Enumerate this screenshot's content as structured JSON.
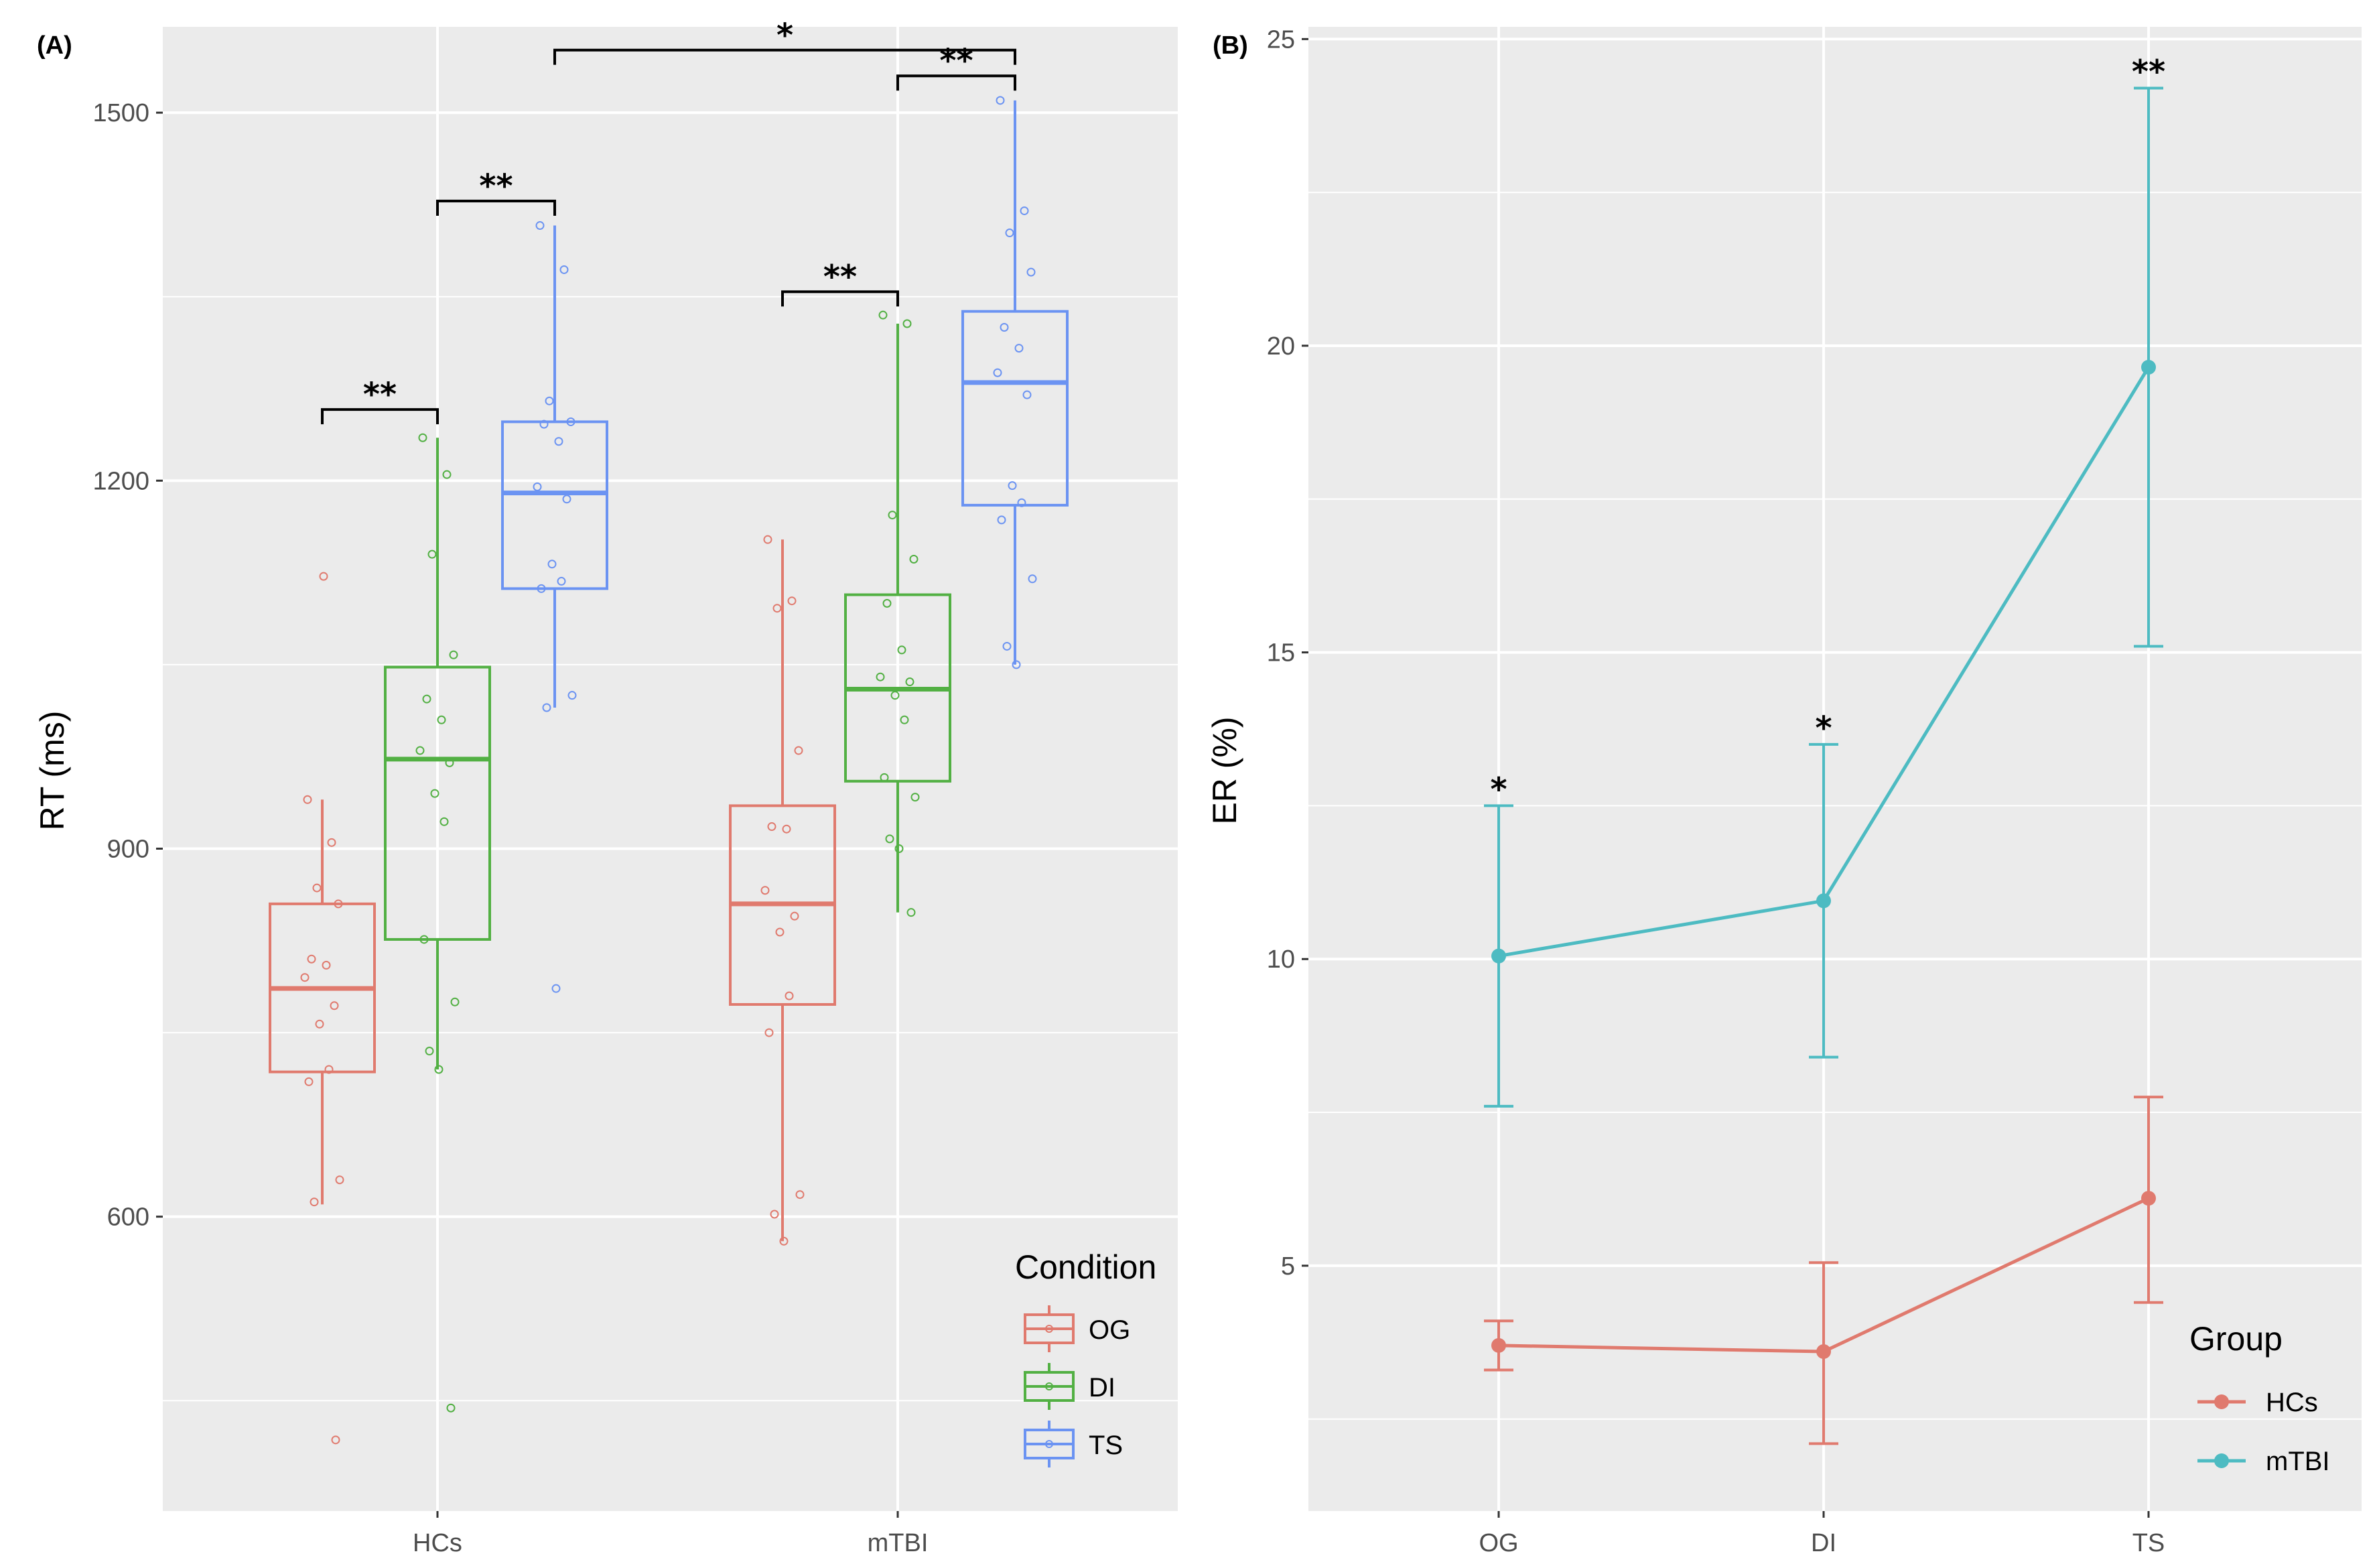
{
  "colors": {
    "OG": "#E07A6E",
    "DI": "#52B043",
    "TS": "#6B93F2",
    "HCs": "#E07A6E",
    "mTBI": "#4DBBC2",
    "panel": "#EBEBEB",
    "grid": "#FFFFFF"
  },
  "chart_data": [
    {
      "type": "box",
      "panel_label": "(A)",
      "ylabel": "RT (ms)",
      "ylim": [
        360,
        1570
      ],
      "yticks": [
        600,
        900,
        1200,
        1500
      ],
      "categories": [
        "HCs",
        "mTBI"
      ],
      "legend": {
        "title": "Condition",
        "position": "bottom-right",
        "entries": [
          "OG",
          "DI",
          "TS"
        ]
      },
      "boxes": [
        {
          "group": "HCs",
          "condition": "OG",
          "lower": 610,
          "q1": 718,
          "median": 786,
          "q3": 855,
          "upper": 940,
          "points": [
            940,
            905,
            868,
            855,
            810,
            805,
            795,
            772,
            757,
            720,
            710,
            630,
            612,
            1122,
            418
          ]
        },
        {
          "group": "HCs",
          "condition": "DI",
          "lower": 720,
          "q1": 826,
          "median": 973,
          "q3": 1048,
          "upper": 1235,
          "points": [
            1235,
            1205,
            1140,
            1058,
            1022,
            1005,
            980,
            970,
            945,
            922,
            826,
            775,
            735,
            720,
            444
          ]
        },
        {
          "group": "HCs",
          "condition": "TS",
          "lower": 1015,
          "q1": 1112,
          "median": 1190,
          "q3": 1248,
          "upper": 1408,
          "points": [
            1408,
            1372,
            1265,
            1248,
            1246,
            1232,
            1195,
            1185,
            1132,
            1118,
            1112,
            1025,
            1015,
            786
          ]
        },
        {
          "group": "mTBI",
          "condition": "OG",
          "lower": 580,
          "q1": 773,
          "median": 855,
          "q3": 935,
          "upper": 1152,
          "points": [
            1152,
            1102,
            1096,
            980,
            918,
            916,
            866,
            845,
            832,
            780,
            750,
            618,
            602,
            580
          ]
        },
        {
          "group": "mTBI",
          "condition": "DI",
          "lower": 848,
          "q1": 955,
          "median": 1030,
          "q3": 1107,
          "upper": 1328,
          "points": [
            1335,
            1328,
            1172,
            1136,
            1100,
            1062,
            1040,
            1036,
            1025,
            1005,
            958,
            942,
            908,
            900,
            848
          ]
        },
        {
          "group": "mTBI",
          "condition": "TS",
          "lower": 1050,
          "q1": 1180,
          "median": 1280,
          "q3": 1338,
          "upper": 1510,
          "points": [
            1510,
            1420,
            1402,
            1370,
            1325,
            1308,
            1288,
            1270,
            1196,
            1182,
            1168,
            1120,
            1065,
            1050
          ]
        }
      ],
      "significance": [
        {
          "from": "HCs-OG",
          "to": "HCs-DI",
          "label": "**",
          "y": 1258
        },
        {
          "from": "HCs-DI",
          "to": "HCs-TS",
          "label": "**",
          "y": 1428
        },
        {
          "from": "mTBI-OG",
          "to": "mTBI-DI",
          "label": "**",
          "y": 1354
        },
        {
          "from": "mTBI-DI",
          "to": "mTBI-TS",
          "label": "**",
          "y": 1530
        },
        {
          "from": "HCs-TS",
          "to": "mTBI-TS",
          "label": "*",
          "y": 1551
        }
      ]
    },
    {
      "type": "line",
      "panel_label": "(B)",
      "ylabel": "ER (%)",
      "ylim": [
        1.0,
        25.2
      ],
      "yticks": [
        5,
        10,
        15,
        20,
        25
      ],
      "categories": [
        "OG",
        "DI",
        "TS"
      ],
      "legend": {
        "title": "Group",
        "position": "bottom-right",
        "entries": [
          "HCs",
          "mTBI"
        ]
      },
      "series": [
        {
          "name": "HCs",
          "values": [
            3.7,
            3.6,
            6.1
          ],
          "lower": [
            3.3,
            2.1,
            4.4
          ],
          "upper": [
            4.1,
            5.05,
            7.75
          ]
        },
        {
          "name": "mTBI",
          "values": [
            10.05,
            10.95,
            19.65
          ],
          "lower": [
            7.6,
            8.4,
            15.1
          ],
          "upper": [
            12.5,
            13.5,
            24.2
          ]
        }
      ],
      "significance": [
        {
          "category": "OG",
          "label": "*"
        },
        {
          "category": "DI",
          "label": "*"
        },
        {
          "category": "TS",
          "label": "**"
        }
      ]
    }
  ]
}
